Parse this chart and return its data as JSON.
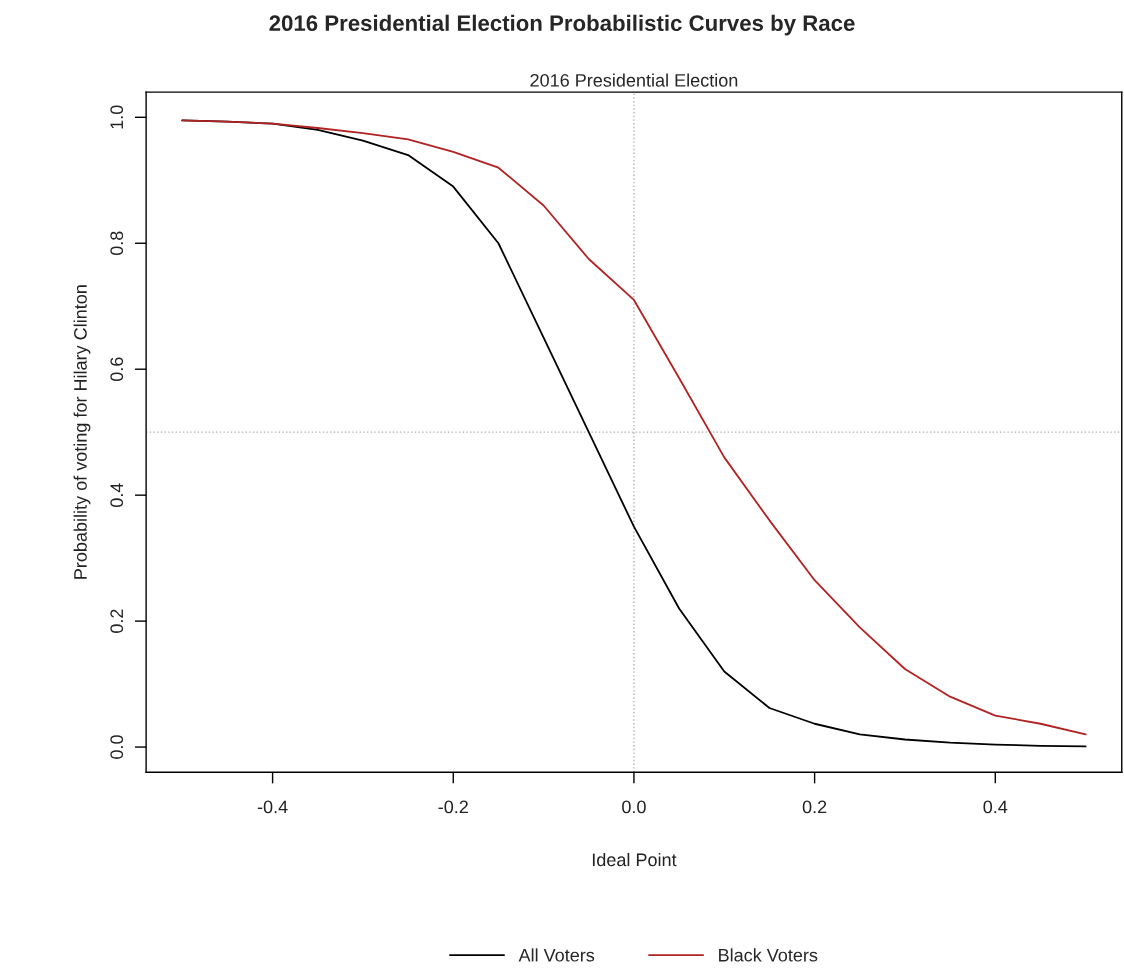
{
  "chart_data": {
    "type": "line",
    "title": "2016 Presidential Election Probabilistic Curves by Race",
    "subtitle": "2016 Presidential Election",
    "xlabel": "Ideal Point",
    "ylabel": "Probability of voting for Hilary Clinton",
    "x": [
      -0.5,
      -0.45,
      -0.4,
      -0.35,
      -0.3,
      -0.25,
      -0.2,
      -0.15,
      -0.1,
      -0.05,
      0.0,
      0.05,
      0.1,
      0.15,
      0.2,
      0.25,
      0.3,
      0.35,
      0.4,
      0.45,
      0.5
    ],
    "series": [
      {
        "name": "All Voters",
        "color": "#000000",
        "values": [
          0.995,
          0.993,
          0.99,
          0.98,
          0.963,
          0.94,
          0.89,
          0.8,
          0.65,
          0.5,
          0.35,
          0.22,
          0.12,
          0.062,
          0.037,
          0.02,
          0.012,
          0.007,
          0.004,
          0.002,
          0.001
        ]
      },
      {
        "name": "Black Voters",
        "color": "#b22222",
        "values": [
          0.995,
          0.993,
          0.99,
          0.983,
          0.975,
          0.965,
          0.945,
          0.92,
          0.86,
          0.775,
          0.71,
          0.586,
          0.46,
          0.36,
          0.265,
          0.19,
          0.124,
          0.08,
          0.05,
          0.037,
          0.02
        ]
      }
    ],
    "xlim": [
      -0.54,
      0.54
    ],
    "xticks": [
      {
        "value": -0.4,
        "label": "-0.4"
      },
      {
        "value": -0.2,
        "label": "-0.2"
      },
      {
        "value": 0.0,
        "label": "0.0"
      },
      {
        "value": 0.2,
        "label": "0.2"
      },
      {
        "value": 0.4,
        "label": "0.4"
      }
    ],
    "ylim": [
      -0.04,
      1.04
    ],
    "yticks": [
      {
        "value": 0.0,
        "label": "0.0"
      },
      {
        "value": 0.2,
        "label": "0.2"
      },
      {
        "value": 0.4,
        "label": "0.4"
      },
      {
        "value": 0.6,
        "label": "0.6"
      },
      {
        "value": 0.8,
        "label": "0.8"
      },
      {
        "value": 1.0,
        "label": "1.0"
      }
    ],
    "ref_lines": [
      {
        "axis": "x",
        "value": 0.0,
        "color": "#b0b0b0",
        "line_style": "dotted"
      },
      {
        "axis": "y",
        "value": 0.5,
        "color": "#b0b0b0",
        "line_style": "dotted"
      }
    ],
    "grid": false,
    "legend": "bottom",
    "line_style": "solid",
    "marker": "none"
  }
}
